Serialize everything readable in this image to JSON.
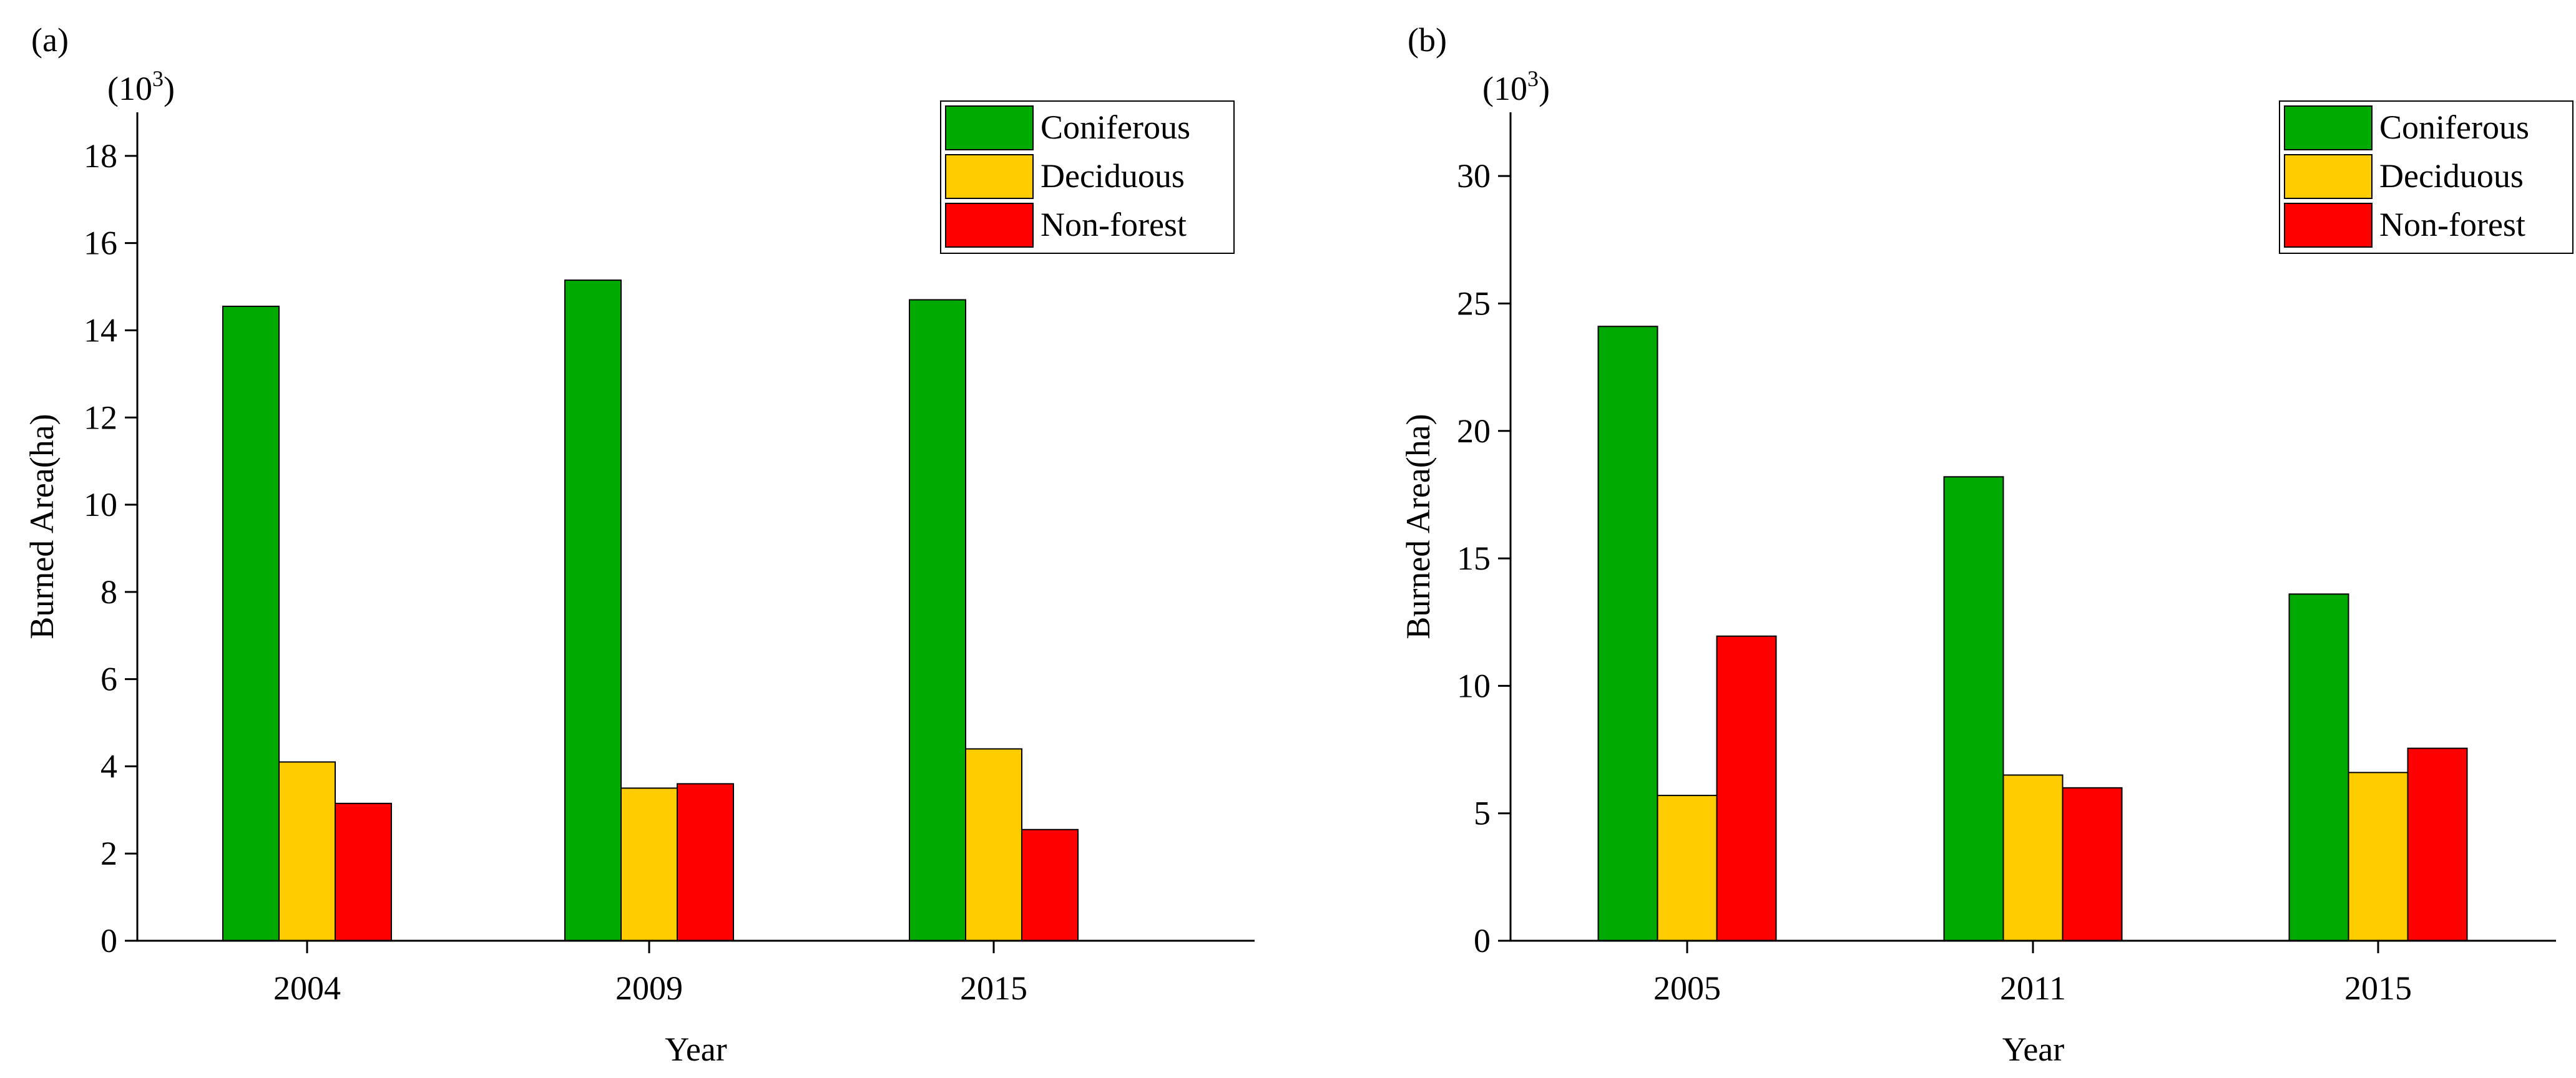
{
  "chart_data": [
    {
      "panel_label": "(a)",
      "type": "bar",
      "categories": [
        "2004",
        "2009",
        "2015"
      ],
      "series": [
        {
          "name": "Coniferous",
          "color": "#00AA00",
          "values": [
            14.55,
            15.15,
            14.7
          ]
        },
        {
          "name": "Deciduous",
          "color": "#FFCC00",
          "values": [
            4.1,
            3.5,
            4.4
          ]
        },
        {
          "name": "Non-forest",
          "color": "#FF0000",
          "values": [
            3.15,
            3.6,
            2.55
          ]
        }
      ],
      "xlabel": "Year",
      "ylabel": "Burned Area(ha)",
      "scale_base": "10",
      "scale_exp": "3",
      "yticks": [
        0,
        2,
        4,
        6,
        8,
        10,
        12,
        14,
        16,
        18
      ],
      "ylim": [
        0,
        19
      ],
      "legend_position": "top-right"
    },
    {
      "panel_label": "(b)",
      "type": "bar",
      "categories": [
        "2005",
        "2011",
        "2015"
      ],
      "series": [
        {
          "name": "Coniferous",
          "color": "#00AA00",
          "values": [
            24.1,
            18.2,
            13.6
          ]
        },
        {
          "name": "Deciduous",
          "color": "#FFCC00",
          "values": [
            5.7,
            6.5,
            6.6
          ]
        },
        {
          "name": "Non-forest",
          "color": "#FF0000",
          "values": [
            11.95,
            6.0,
            7.55
          ]
        }
      ],
      "xlabel": "Year",
      "ylabel": "Burned Area(ha)",
      "scale_base": "10",
      "scale_exp": "3",
      "yticks": [
        0,
        5,
        10,
        15,
        20,
        25,
        30
      ],
      "ylim": [
        0,
        32.5
      ],
      "legend_position": "top-right"
    }
  ]
}
